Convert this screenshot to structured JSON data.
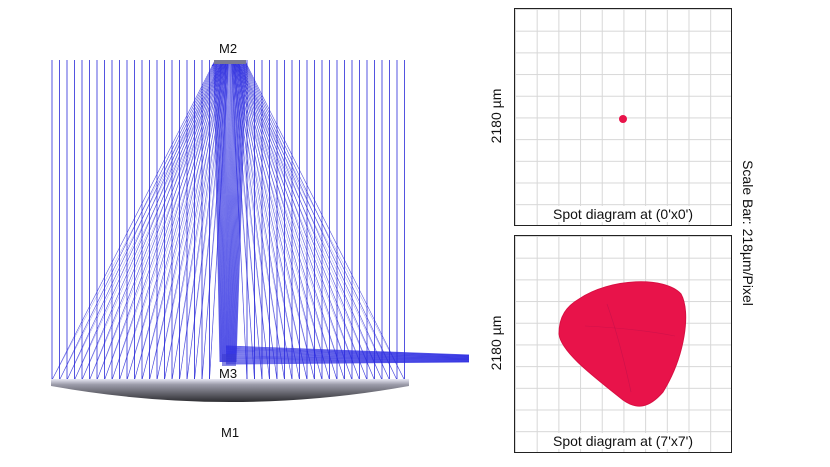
{
  "diagram": {
    "mirror_labels": {
      "m2": "M2",
      "m3": "M3",
      "m1": "M1"
    },
    "ray_color": "#1f1fd6",
    "dense_ray_color": "#2a2ae0",
    "mirror_dark": "#2e2e30",
    "mirror_light": "#e6e6f2"
  },
  "spot_diagrams": {
    "spot_color": "#e8134a",
    "top": {
      "caption": "Spot diagram at (0'x0')",
      "axis_label": "2180 µm"
    },
    "bottom": {
      "caption": "Spot diagram at (7'x7')",
      "axis_label": "2180 µm"
    }
  },
  "scale_bar": {
    "label": "Scale Bar: 218µm/Pixel"
  }
}
